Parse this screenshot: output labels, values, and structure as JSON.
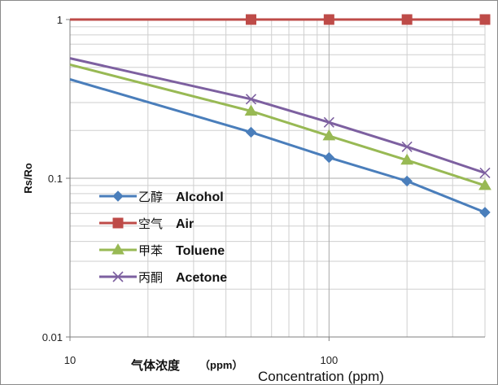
{
  "chart_data": {
    "type": "line",
    "x": [
      50,
      100,
      200,
      400
    ],
    "xlim": [
      10,
      400
    ],
    "ylim": [
      0.01,
      1
    ],
    "xscale": "log",
    "yscale": "log",
    "grid": true,
    "legend_position": "left-center inside plot",
    "x_tick_labels": [
      "10",
      "100"
    ],
    "y_tick_labels": [
      "1",
      "0.1",
      "0.01"
    ],
    "ylabel": "Rs/Ro",
    "xlabel_zh": "气体浓度",
    "xlabel_unit": "（ppm）",
    "xlabel_en": "Concentration (ppm)",
    "series": [
      {
        "name_zh": "乙醇",
        "name": "Alcohol",
        "color": "#4a7ebb",
        "marker": "diamond",
        "x_start": 10,
        "y_start": 0.42,
        "values": [
          0.195,
          0.135,
          0.096,
          0.061
        ]
      },
      {
        "name_zh": "空气",
        "name": "Air",
        "color": "#be4b48",
        "marker": "square",
        "x_start": 10,
        "y_start": 1.0,
        "values": [
          1.0,
          1.0,
          1.0,
          1.0
        ]
      },
      {
        "name_zh": "甲苯",
        "name": "Toluene",
        "color": "#98b954",
        "marker": "triangle",
        "x_start": 10,
        "y_start": 0.52,
        "values": [
          0.265,
          0.185,
          0.13,
          0.09
        ]
      },
      {
        "name_zh": "丙酮",
        "name": "Acetone",
        "color": "#7d60a0",
        "marker": "x",
        "x_start": 10,
        "y_start": 0.57,
        "values": [
          0.315,
          0.225,
          0.158,
          0.108
        ]
      }
    ]
  }
}
